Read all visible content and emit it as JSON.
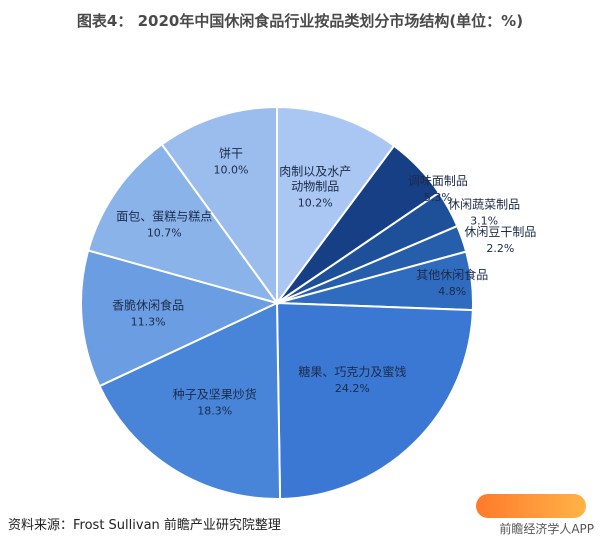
{
  "title": "图表4： 2020年中国休闲食品行业按品类划分市场结构(单位：%)",
  "source": "资料来源：Frost Sullivan 前瞻产业研究院整理",
  "brand": "前瞻经济学人APP",
  "chart_data": {
    "type": "pie",
    "title": "2020年中国休闲食品行业按品类划分市场结构(单位：%)",
    "unit": "%",
    "slices": [
      {
        "label": "肉制以及水产动物制品",
        "value": 10.2,
        "value_text": "10.2%",
        "color": "#a9c7f2"
      },
      {
        "label": "调味面制品",
        "value": 5.3,
        "value_text": "5.3%",
        "color": "#173f86"
      },
      {
        "label": "休闲蔬菜制品",
        "value": 3.1,
        "value_text": "3.1%",
        "color": "#1e4f99"
      },
      {
        "label": "休闲豆干制品",
        "value": 2.2,
        "value_text": "2.2%",
        "color": "#275eab"
      },
      {
        "label": "其他休闲食品",
        "value": 4.8,
        "value_text": "4.8%",
        "color": "#2f6cbf"
      },
      {
        "label": "糖果、巧克力及蜜饯",
        "value": 24.2,
        "value_text": "24.2%",
        "color": "#3a78d3"
      },
      {
        "label": "种子及坚果炒货",
        "value": 18.3,
        "value_text": "18.3%",
        "color": "#4885d8"
      },
      {
        "label": "香脆休闲食品",
        "value": 11.3,
        "value_text": "11.3%",
        "color": "#6b9de3"
      },
      {
        "label": "面包、蛋糕与糕点",
        "value": 10.7,
        "value_text": "10.7%",
        "color": "#8ab3ea"
      },
      {
        "label": "饼干",
        "value": 10.0,
        "value_text": "10.0%",
        "color": "#9bbdee"
      }
    ]
  }
}
